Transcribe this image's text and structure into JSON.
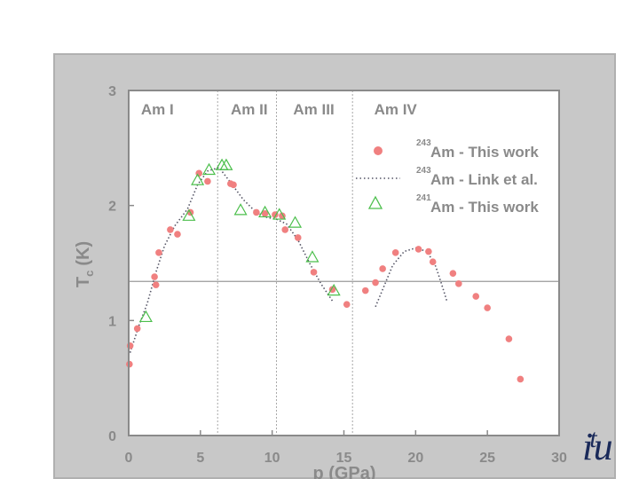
{
  "chart_data": {
    "type": "scatter",
    "xlabel": "p (GPa)",
    "ylabel_main": "T",
    "ylabel_sub": "c",
    "ylabel_unit": "(K)",
    "xlim": [
      0,
      30
    ],
    "ylim": [
      0,
      3
    ],
    "xticks": [
      "0",
      "5",
      "10",
      "15",
      "20",
      "25",
      "30"
    ],
    "yticks": [
      "0",
      "1",
      "2",
      "3"
    ],
    "xtick_values": [
      0,
      5,
      10,
      15,
      20,
      25,
      30
    ],
    "ytick_values": [
      0,
      1,
      2,
      3
    ],
    "legend_position": "top-right",
    "phase_labels": [
      {
        "text": "Am I",
        "x": 2.0
      },
      {
        "text": "Am II",
        "x": 8.4
      },
      {
        "text": "Am III",
        "x": 12.9
      },
      {
        "text": "Am IV",
        "x": 18.6
      }
    ],
    "phase_boundaries": [
      6.2,
      10.3,
      15.6
    ],
    "reference_line_y": 1.34,
    "series": [
      {
        "name_sup": "243",
        "name": "Am - This work",
        "marker": "filled-circle",
        "color": "#f08080",
        "points": [
          [
            0.05,
            0.62
          ],
          [
            0.1,
            0.78
          ],
          [
            0.6,
            0.93
          ],
          [
            1.8,
            1.38
          ],
          [
            1.9,
            1.31
          ],
          [
            2.1,
            1.59
          ],
          [
            2.9,
            1.79
          ],
          [
            3.4,
            1.75
          ],
          [
            4.3,
            1.94
          ],
          [
            4.9,
            2.28
          ],
          [
            5.5,
            2.21
          ],
          [
            7.1,
            2.19
          ],
          [
            7.3,
            2.18
          ],
          [
            8.9,
            1.94
          ],
          [
            9.5,
            1.93
          ],
          [
            10.2,
            1.92
          ],
          [
            10.7,
            1.91
          ],
          [
            10.9,
            1.79
          ],
          [
            11.8,
            1.72
          ],
          [
            12.9,
            1.42
          ],
          [
            14.2,
            1.27
          ],
          [
            15.2,
            1.14
          ],
          [
            16.5,
            1.26
          ],
          [
            17.2,
            1.33
          ],
          [
            17.7,
            1.45
          ],
          [
            18.6,
            1.59
          ],
          [
            20.2,
            1.62
          ],
          [
            20.9,
            1.6
          ],
          [
            21.2,
            1.51
          ],
          [
            22.6,
            1.41
          ],
          [
            23.0,
            1.32
          ],
          [
            24.2,
            1.21
          ],
          [
            25.0,
            1.11
          ],
          [
            26.5,
            0.84
          ],
          [
            27.3,
            0.49
          ]
        ]
      },
      {
        "name_sup": "243",
        "name": "Am - Link et al.",
        "marker": "dotted-line",
        "color": "#555566",
        "segments": [
          [
            [
              0.1,
              0.72
            ],
            [
              0.7,
              0.95
            ],
            [
              1.3,
              1.15
            ],
            [
              1.9,
              1.42
            ],
            [
              2.5,
              1.65
            ],
            [
              3.2,
              1.82
            ],
            [
              4.1,
              1.97
            ],
            [
              4.8,
              2.18
            ],
            [
              5.5,
              2.3
            ],
            [
              6.3,
              2.33
            ],
            [
              7.1,
              2.2
            ],
            [
              8.0,
              2.05
            ],
            [
              8.8,
              1.95
            ],
            [
              9.5,
              1.9
            ],
            [
              10.3,
              1.88
            ],
            [
              11.0,
              1.84
            ],
            [
              11.8,
              1.7
            ],
            [
              12.6,
              1.5
            ],
            [
              13.4,
              1.32
            ],
            [
              14.2,
              1.17
            ]
          ],
          [
            [
              17.2,
              1.12
            ],
            [
              17.8,
              1.3
            ],
            [
              18.4,
              1.48
            ],
            [
              19.2,
              1.6
            ],
            [
              20.0,
              1.63
            ],
            [
              20.8,
              1.6
            ],
            [
              21.4,
              1.47
            ],
            [
              21.8,
              1.32
            ],
            [
              22.2,
              1.16
            ]
          ]
        ]
      },
      {
        "name_sup": "241",
        "name": "Am - This work",
        "marker": "open-triangle",
        "color": "#4cbf4c",
        "points": [
          [
            1.2,
            1.03
          ],
          [
            4.2,
            1.91
          ],
          [
            4.8,
            2.22
          ],
          [
            5.6,
            2.31
          ],
          [
            6.5,
            2.35
          ],
          [
            6.8,
            2.35
          ],
          [
            7.8,
            1.96
          ],
          [
            9.5,
            1.94
          ],
          [
            10.5,
            1.92
          ],
          [
            11.6,
            1.85
          ],
          [
            12.8,
            1.55
          ],
          [
            14.3,
            1.26
          ]
        ]
      }
    ]
  },
  "logo": {
    "main": "i",
    "small": "t",
    "tail": "u"
  }
}
